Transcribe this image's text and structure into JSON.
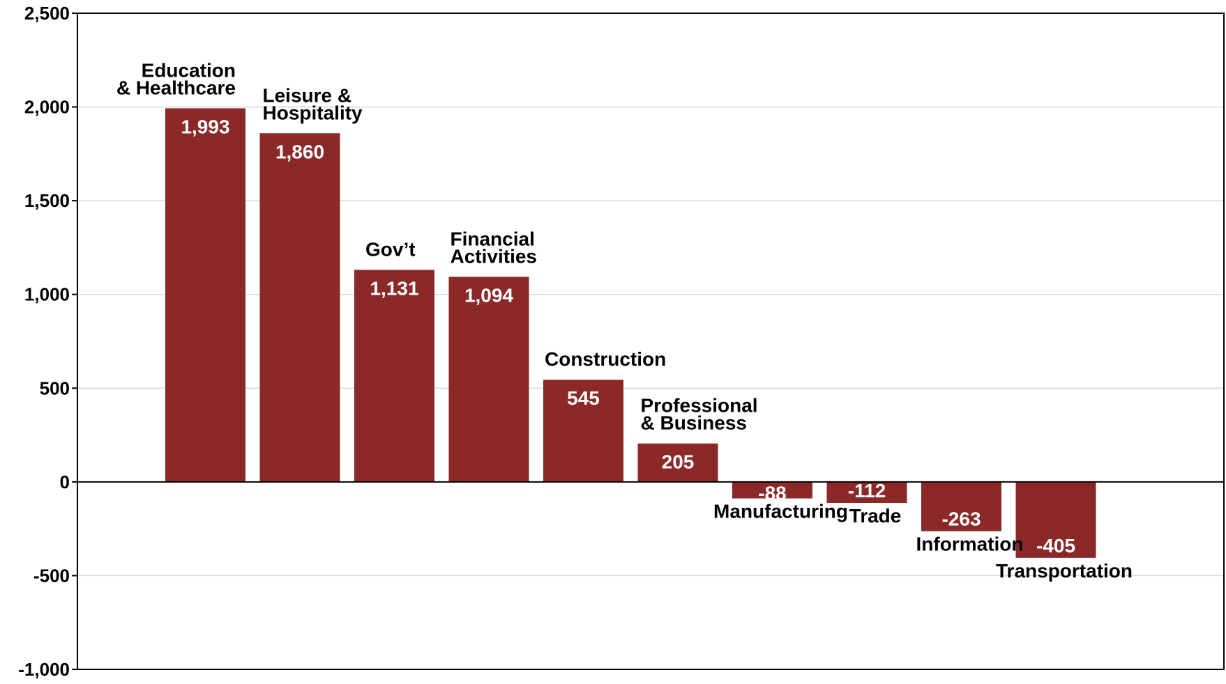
{
  "chart_data": {
    "type": "bar",
    "categories": [
      "Education & Healthcare",
      "Leisure & Hospitality",
      "Gov’t",
      "Financial Activities",
      "Construction",
      "Professional & Business",
      "Manufacturing",
      "Trade",
      "Information",
      "Transportation"
    ],
    "category_label_lines": [
      [
        "Education",
        "& Healthcare"
      ],
      [
        "Leisure &",
        "Hospitality"
      ],
      [
        "Gov’t"
      ],
      [
        "Financial",
        "Activities"
      ],
      [
        "Construction"
      ],
      [
        "Professional",
        "& Business"
      ],
      [
        "Manufacturing"
      ],
      [
        "Trade"
      ],
      [
        "Information"
      ],
      [
        "Transportation"
      ]
    ],
    "values": [
      1993,
      1860,
      1131,
      1094,
      545,
      205,
      -88,
      -112,
      -263,
      -405
    ],
    "value_labels": [
      "1,993",
      "1,860",
      "1,131",
      "1,094",
      "545",
      "205",
      "-88",
      "-112",
      "-263",
      "-405"
    ],
    "ylim": [
      -1000,
      2500
    ],
    "yticks": [
      2500,
      2000,
      1500,
      1000,
      500,
      0,
      -500,
      -1000
    ],
    "ytick_labels": [
      "2,500",
      "2,000",
      "1,500",
      "1,000",
      "500",
      "0",
      "-500",
      "-1,000"
    ],
    "title": "",
    "xlabel": "",
    "ylabel": "",
    "grid": true,
    "bar_color": "#8b2929",
    "gridline_color": "#d9d9d9",
    "value_label_color": "#ffffff"
  }
}
